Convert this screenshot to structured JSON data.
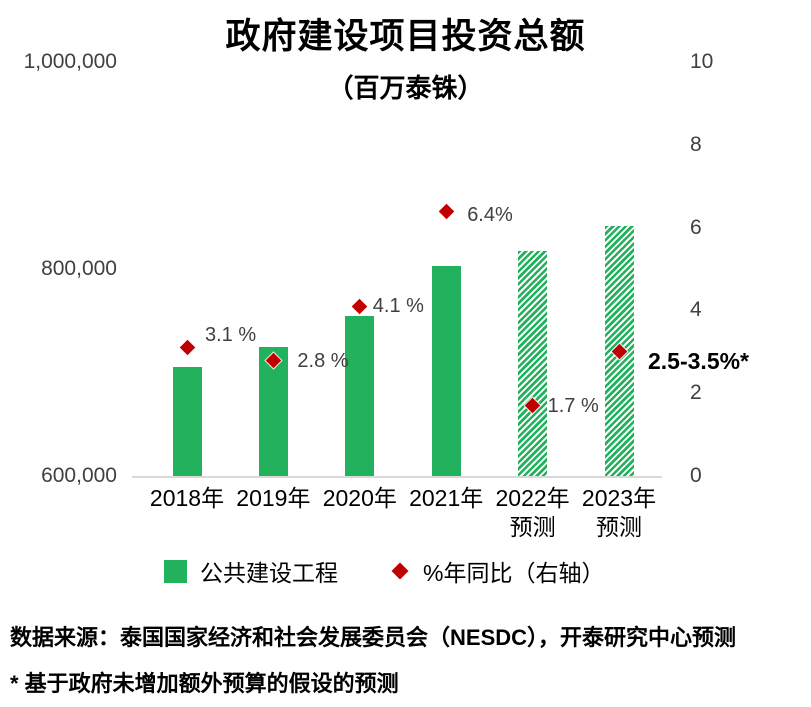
{
  "title": "政府建设项目投资总额",
  "subtitle": "（百万泰铢）",
  "chart_data": {
    "type": "bar",
    "title": "政府建设项目投资总额",
    "subtitle": "（百万泰铢）",
    "unit": "百万泰铢",
    "grid": false,
    "legend_position": "bottom",
    "categories": [
      {
        "label": "2018年",
        "sublabel": "",
        "forecast": false
      },
      {
        "label": "2019年",
        "sublabel": "",
        "forecast": false
      },
      {
        "label": "2020年",
        "sublabel": "",
        "forecast": false
      },
      {
        "label": "2021年",
        "sublabel": "",
        "forecast": false
      },
      {
        "label": "2022年",
        "sublabel": "预测",
        "forecast": true
      },
      {
        "label": "2023年",
        "sublabel": "预测",
        "forecast": true
      }
    ],
    "bar_series": {
      "name": "公共建设工程",
      "axis": "left",
      "values": [
        705000,
        725000,
        755000,
        803000,
        817000,
        842000
      ]
    },
    "marker_series": {
      "name": "%年同比（右轴）",
      "axis": "right",
      "values": [
        3.1,
        2.8,
        4.1,
        6.4,
        1.7,
        3.0
      ],
      "labels": [
        "3.1 %",
        "2.8 %",
        "4.1 %",
        "6.4%",
        "1.7 %",
        "2.5-3.5%*"
      ]
    },
    "left_axis": {
      "min": 600000,
      "max": 1000000,
      "ticks": [
        "1,000,000",
        "800,000",
        "600,000"
      ],
      "tick_values": [
        1000000,
        800000,
        600000
      ]
    },
    "right_axis": {
      "min": 0,
      "max": 10,
      "ticks": [
        "10",
        "8",
        "6",
        "4",
        "2",
        "0"
      ],
      "tick_values": [
        10,
        8,
        6,
        4,
        2,
        0
      ]
    }
  },
  "legend": [
    {
      "label": "公共建设工程",
      "marker": "green-square"
    },
    {
      "label": "%年同比（右轴）",
      "marker": "red-diamond"
    }
  ],
  "source": "数据来源：泰国国家经济和社会发展委员会（NESDC），开泰研究中心预测",
  "footnote": "* 基于政府未增加额外预算的假设的预测",
  "colors": {
    "bar_green": "#22B15C",
    "marker_red": "#C00000",
    "text_gray": "#404040",
    "text_black": "#000000",
    "axis_line": "#D9D9D9"
  }
}
